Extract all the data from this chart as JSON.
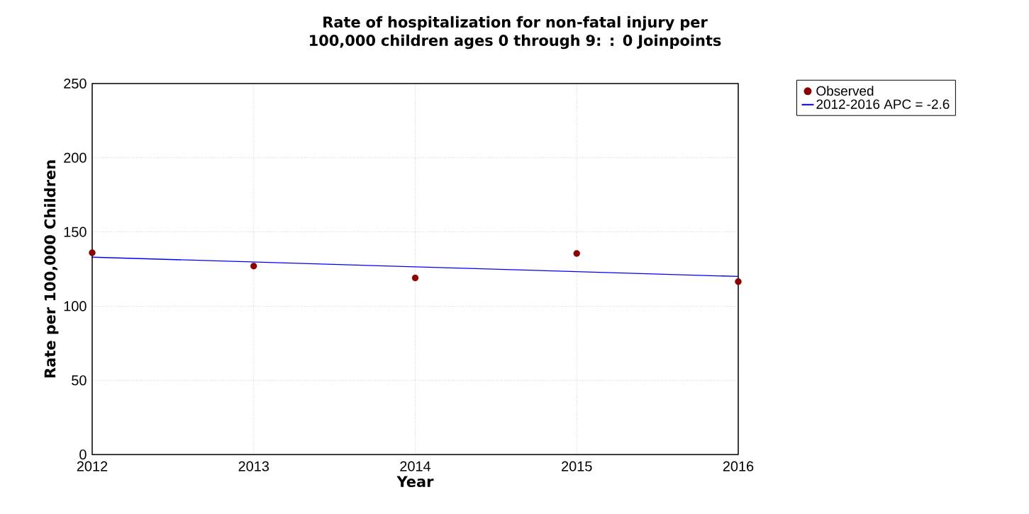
{
  "chart_data": {
    "type": "scatter",
    "title": "Rate of hospitalization for non-fatal injury per 100,000 children ages 0 through 9: : 0 Joinpoints",
    "xlabel": "Year",
    "ylabel": "Rate per 100,000 Children",
    "x": [
      2012,
      2013,
      2014,
      2015,
      2016
    ],
    "series": [
      {
        "name": "Observed",
        "color": "#8b0000",
        "values": [
          136,
          127,
          119,
          135.5,
          116.5
        ]
      },
      {
        "name": "2012-2016 APC  = -2.6",
        "type": "line",
        "marker": "none",
        "color": "#0000ff",
        "x": [
          2012,
          2016
        ],
        "values": [
          133,
          120
        ]
      }
    ],
    "xlim": [
      2012,
      2016
    ],
    "xticks": [
      2012,
      2013,
      2014,
      2015,
      2016
    ],
    "ylim": [
      0,
      250
    ],
    "yticks": [
      0,
      50,
      100,
      150,
      200,
      250
    ],
    "grid": true,
    "legend": "top right",
    "marker": "circle"
  }
}
